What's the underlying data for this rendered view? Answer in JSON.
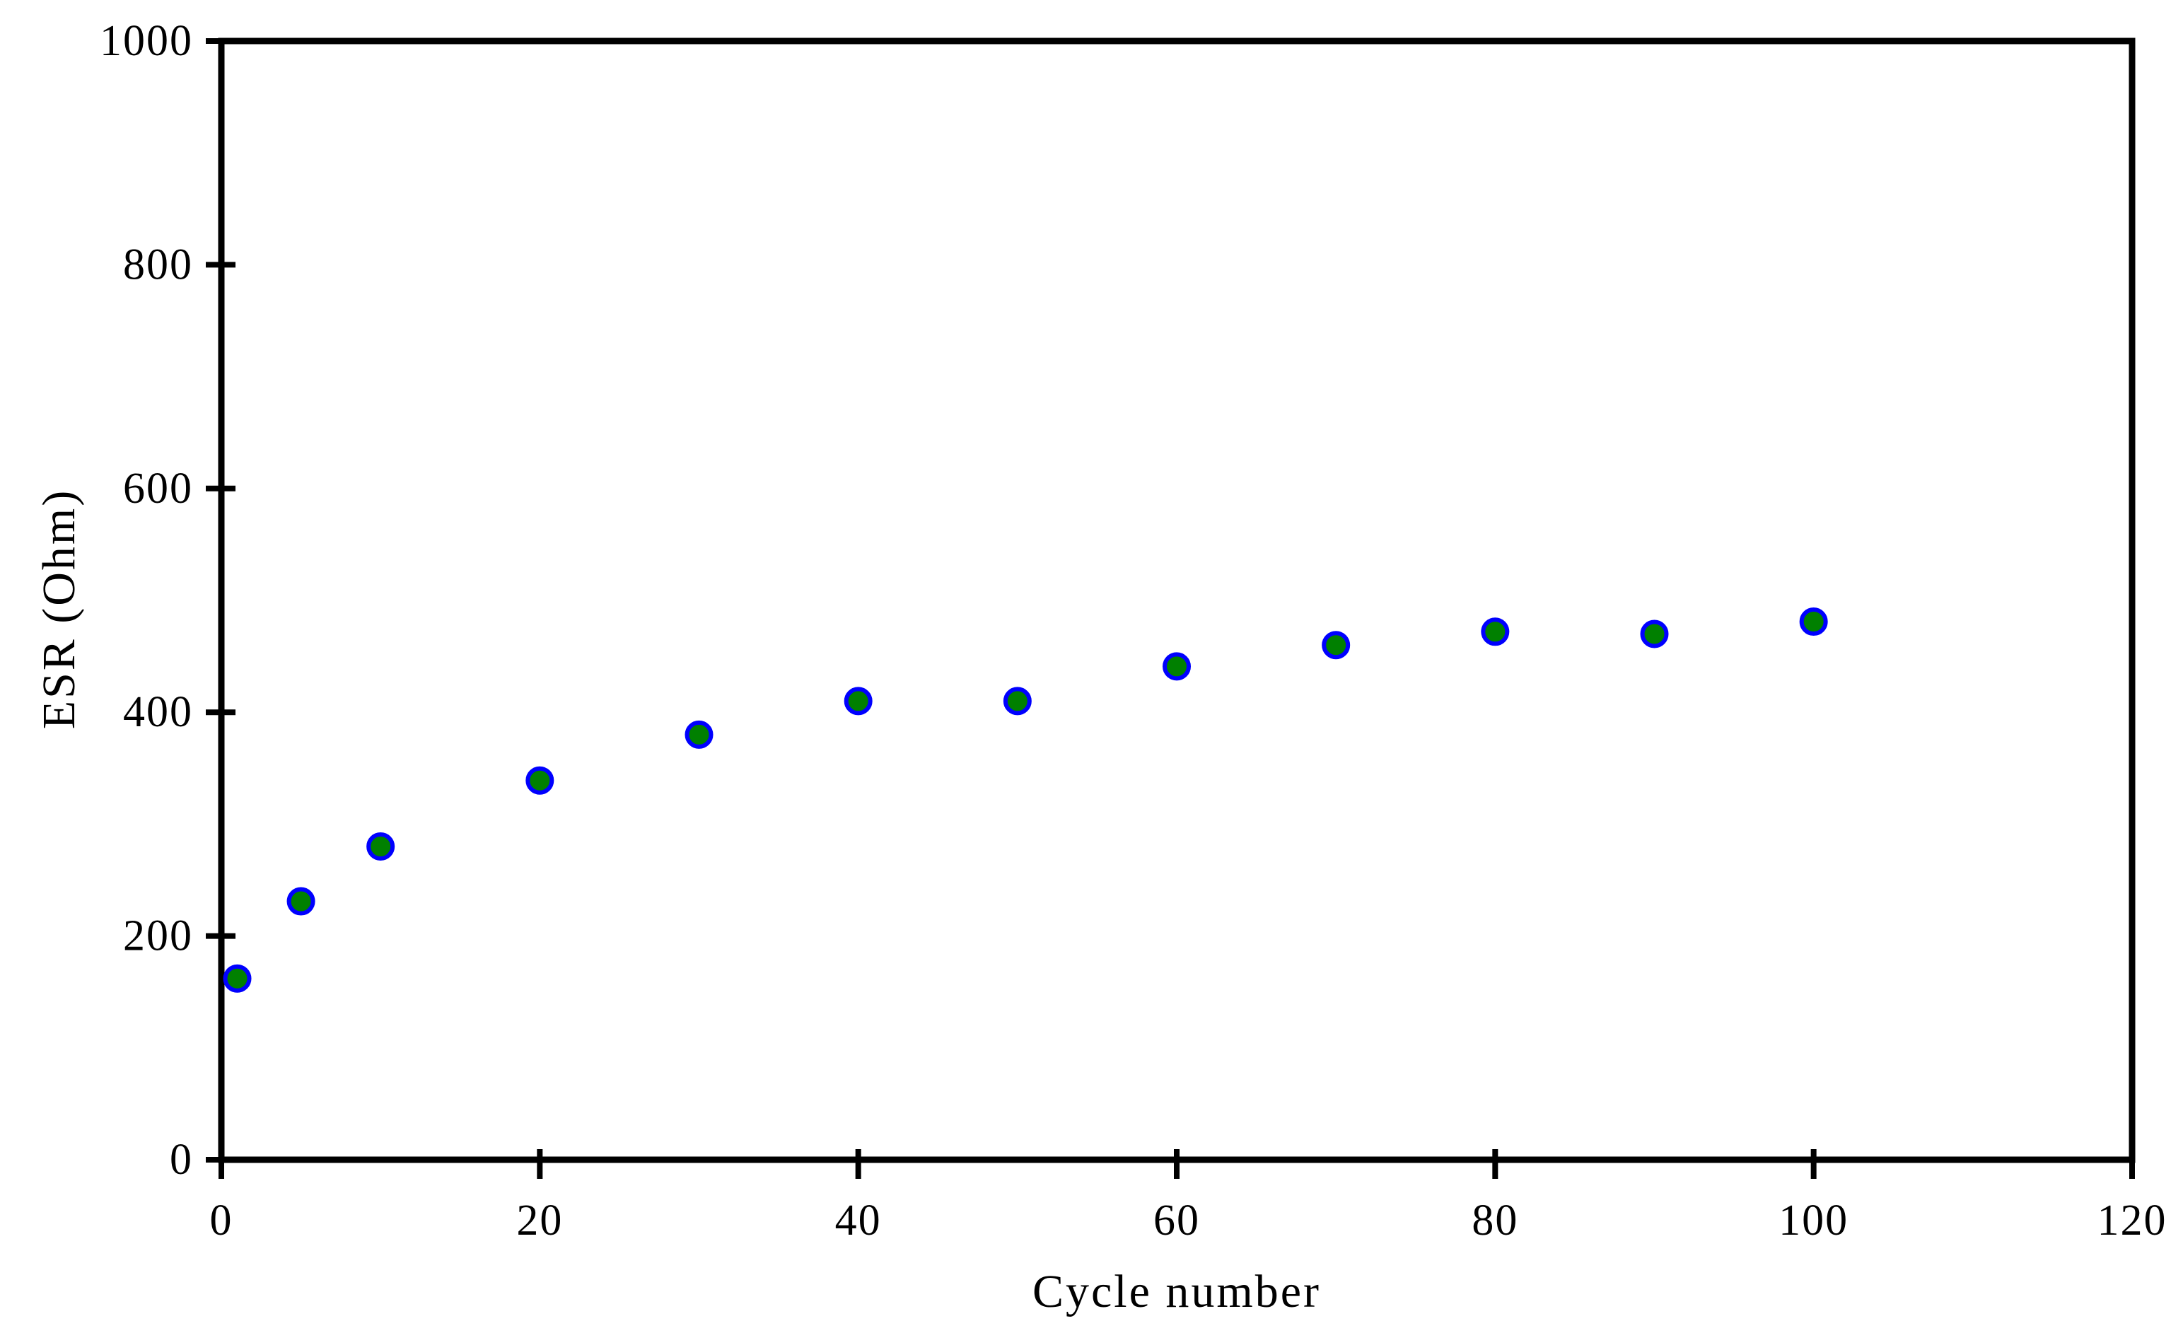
{
  "chart_data": {
    "type": "scatter",
    "title": "",
    "xlabel": "Cycle number",
    "ylabel": "ESR (Ohm)",
    "xlim": [
      0,
      120
    ],
    "ylim": [
      0,
      1000
    ],
    "x_ticks": [
      0,
      20,
      40,
      60,
      80,
      100,
      120
    ],
    "y_ticks": [
      0,
      200,
      400,
      600,
      800,
      1000
    ],
    "grid": false,
    "legend": false,
    "series": [
      {
        "name": "ESR",
        "x": [
          1,
          5,
          10,
          20,
          30,
          40,
          50,
          60,
          70,
          80,
          90,
          100
        ],
        "y": [
          162,
          231,
          280,
          339,
          380,
          410,
          410,
          441,
          460,
          472,
          470,
          481
        ]
      }
    ],
    "marker": {
      "shape": "circle",
      "fill_color": "#008000",
      "stroke_color": "#0000ff"
    },
    "axis_color": "#000000",
    "background_color": "#ffffff"
  }
}
